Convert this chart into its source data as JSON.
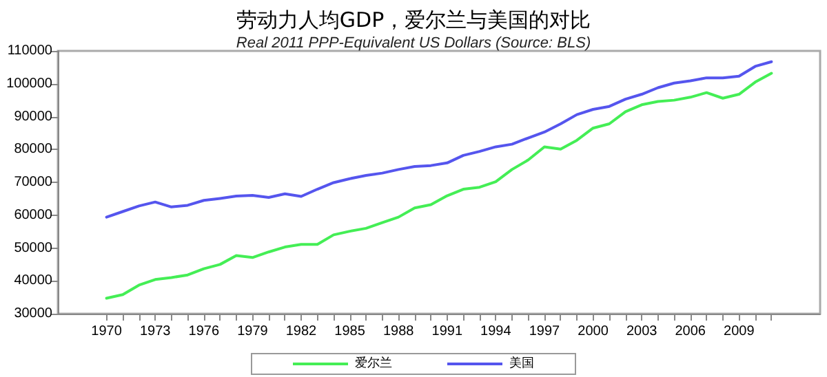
{
  "chart_data": {
    "type": "line",
    "title": "劳动力人均GDP，爱尔兰与美国的对比",
    "subtitle": "Real 2011 PPP-Equivalent US Dollars (Source: BLS)",
    "x": [
      1970,
      1971,
      1972,
      1973,
      1974,
      1975,
      1976,
      1977,
      1978,
      1979,
      1980,
      1981,
      1982,
      1983,
      1984,
      1985,
      1986,
      1987,
      1988,
      1989,
      1990,
      1991,
      1992,
      1993,
      1994,
      1995,
      1996,
      1997,
      1998,
      1999,
      2000,
      2001,
      2002,
      2003,
      2004,
      2005,
      2006,
      2007,
      2008,
      2009,
      2010,
      2011
    ],
    "series": [
      {
        "name": "爱尔兰",
        "color": "#44ee55",
        "values": [
          34700,
          35800,
          38700,
          40400,
          41000,
          41800,
          43700,
          45000,
          47700,
          47100,
          48800,
          50300,
          51100,
          51100,
          54000,
          55100,
          56000,
          57700,
          59400,
          62200,
          63200,
          65900,
          67900,
          68500,
          70200,
          73900,
          76800,
          80800,
          80100,
          82800,
          86500,
          87800,
          91500,
          93600,
          94600,
          95000,
          95900,
          97300,
          95600,
          96800,
          100500,
          103200
        ]
      },
      {
        "name": "美国",
        "color": "#5555ee",
        "values": [
          59400,
          61100,
          62800,
          64000,
          62500,
          63000,
          64500,
          65100,
          65800,
          66000,
          65400,
          66500,
          65700,
          67900,
          69900,
          71100,
          72100,
          72800,
          73900,
          74800,
          75100,
          75900,
          78200,
          79400,
          80800,
          81600,
          83500,
          85300,
          87800,
          90600,
          92200,
          93100,
          95300,
          96800,
          98800,
          100200,
          100900,
          101800,
          101800,
          102300,
          105300,
          106700
        ]
      }
    ],
    "xlim": [
      1967,
      2014
    ],
    "xticks": [
      1970,
      {
        "value": 1971,
        "label": null
      },
      {
        "value": 1972,
        "label": null
      },
      1973,
      {
        "value": 1974,
        "label": null
      },
      {
        "value": 1975,
        "label": null
      },
      1976,
      {
        "value": 1977,
        "label": null
      },
      {
        "value": 1978,
        "label": null
      },
      1979,
      {
        "value": 1980,
        "label": null
      },
      {
        "value": 1981,
        "label": null
      },
      1982,
      {
        "value": 1983,
        "label": null
      },
      {
        "value": 1984,
        "label": null
      },
      1985,
      {
        "value": 1986,
        "label": null
      },
      {
        "value": 1987,
        "label": null
      },
      1988,
      {
        "value": 1989,
        "label": null
      },
      {
        "value": 1990,
        "label": null
      },
      1991,
      {
        "value": 1992,
        "label": null
      },
      {
        "value": 1993,
        "label": null
      },
      1994,
      {
        "value": 1995,
        "label": null
      },
      {
        "value": 1996,
        "label": null
      },
      1997,
      {
        "value": 1998,
        "label": null
      },
      {
        "value": 1999,
        "label": null
      },
      2000,
      {
        "value": 2001,
        "label": null
      },
      {
        "value": 2002,
        "label": null
      },
      2003,
      {
        "value": 2004,
        "label": null
      },
      {
        "value": 2005,
        "label": null
      },
      2006,
      {
        "value": 2007,
        "label": null
      },
      {
        "value": 2008,
        "label": null
      },
      2009,
      {
        "value": 2010,
        "label": null
      },
      {
        "value": 2011,
        "label": null
      }
    ],
    "ylim": [
      30000,
      110000
    ],
    "yticks": [
      30000,
      40000,
      50000,
      60000,
      70000,
      80000,
      90000,
      100000,
      110000
    ],
    "grid": false,
    "legend": "bottom",
    "marker": "none",
    "line_style": "solid"
  }
}
